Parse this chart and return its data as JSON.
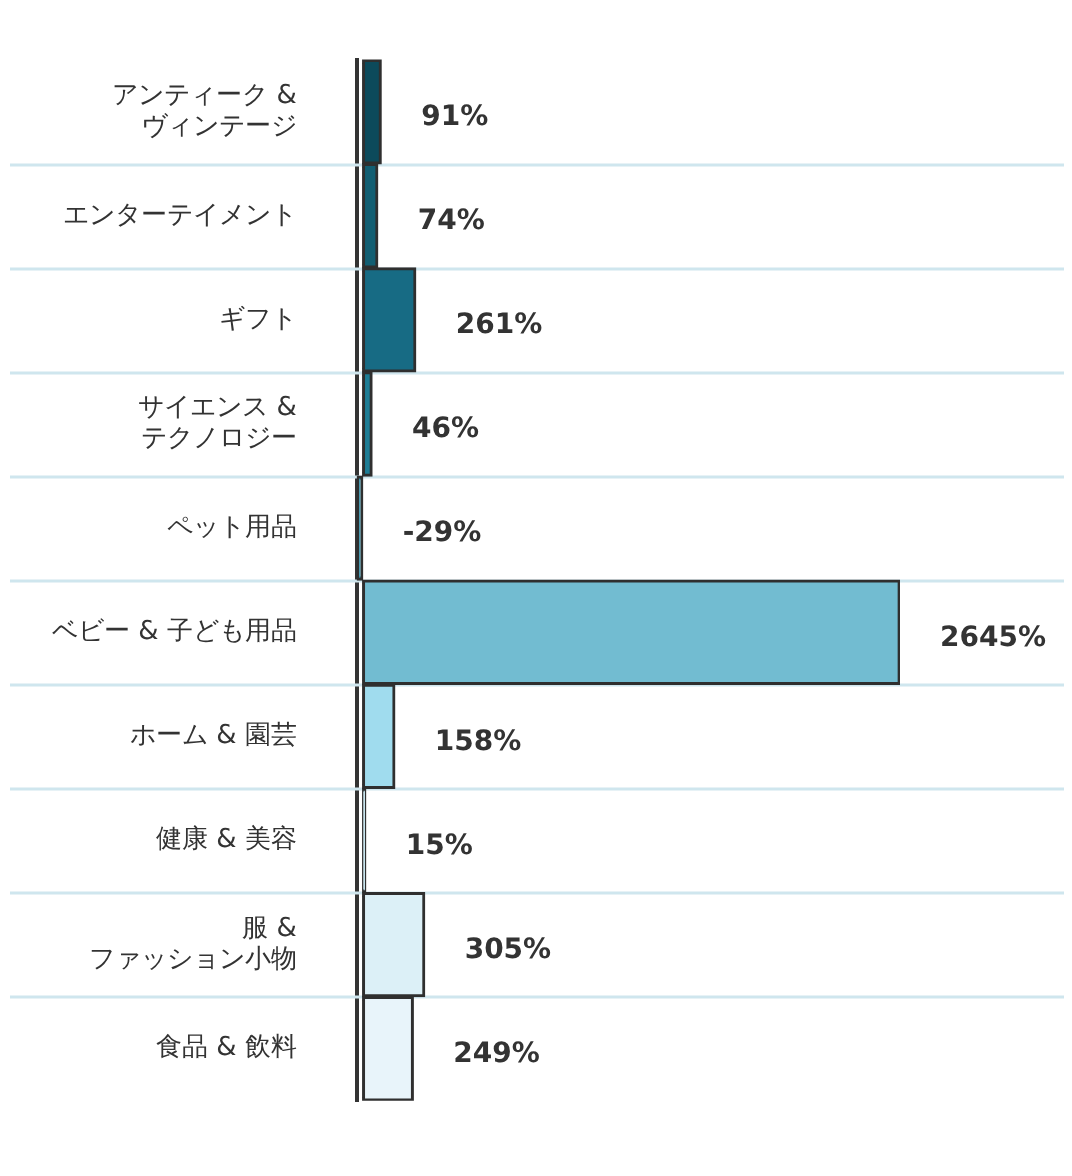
{
  "chart_data": {
    "type": "bar",
    "orientation": "horizontal",
    "grid": "y",
    "categories": [
      "アンティーク &\nヴィンテージ",
      "エンターテイメント",
      "ギフト",
      "サイエンス &\nテクノロジー",
      "ペット用品",
      "ベビー & 子ども用品",
      "ホーム & 園芸",
      "健康 & 美容",
      "服 &\nファッション小物",
      "食品 & 飲料"
    ],
    "values": [
      91,
      74,
      261,
      46,
      -29,
      2645,
      158,
      15,
      305,
      249
    ],
    "colors": [
      "#0c4a5b",
      "#125e72",
      "#176b84",
      "#1e7d95",
      "#3a93ab",
      "#72bcd1",
      "#a0dcee",
      "#c0e4ef",
      "#dcf0f7",
      "#e8f4fa"
    ],
    "value_labels": [
      "91%",
      "74%",
      "261%",
      "46%",
      "-29%",
      "2645%",
      "158%",
      "15%",
      "305%",
      "249%"
    ]
  }
}
